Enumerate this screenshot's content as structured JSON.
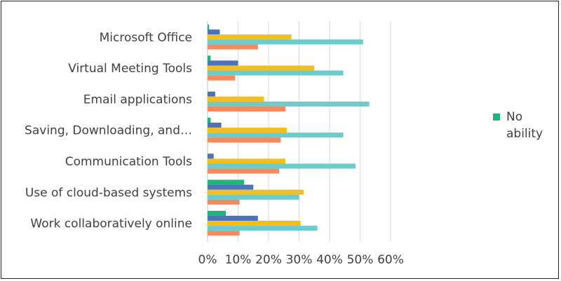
{
  "chart_data": {
    "type": "bar",
    "orientation": "horizontal",
    "categories": [
      "Microsoft Office",
      "Virtual Meeting Tools",
      "Email applications",
      "Saving, Downloading, and…",
      "Communication Tools",
      "Use of cloud-based systems",
      "Work collaboratively online"
    ],
    "series": [
      {
        "name": "No ability",
        "color": "#1db57a",
        "values": [
          0.5,
          1,
          0,
          1,
          0,
          12,
          6
        ]
      },
      {
        "color": "#4e72b8",
        "values": [
          4,
          10,
          2.5,
          4.5,
          2,
          15,
          16.5
        ]
      },
      {
        "color": "#f5be1a",
        "values": [
          27.5,
          35,
          18.5,
          26,
          25.5,
          31.5,
          30.5
        ]
      },
      {
        "color": "#6ecbcc",
        "values": [
          51,
          44.5,
          53,
          44.5,
          48.5,
          30,
          36
        ]
      },
      {
        "color": "#f58a5f",
        "values": [
          16.5,
          9,
          25.5,
          24,
          23.5,
          10.5,
          10.5
        ]
      }
    ],
    "x_ticks": [
      "0%",
      "10%",
      "20%",
      "30%",
      "40%",
      "50%",
      "60%"
    ],
    "xlim": [
      0,
      60
    ],
    "grid": true,
    "legend_position": "right",
    "title": "",
    "xlabel": "",
    "ylabel": ""
  }
}
